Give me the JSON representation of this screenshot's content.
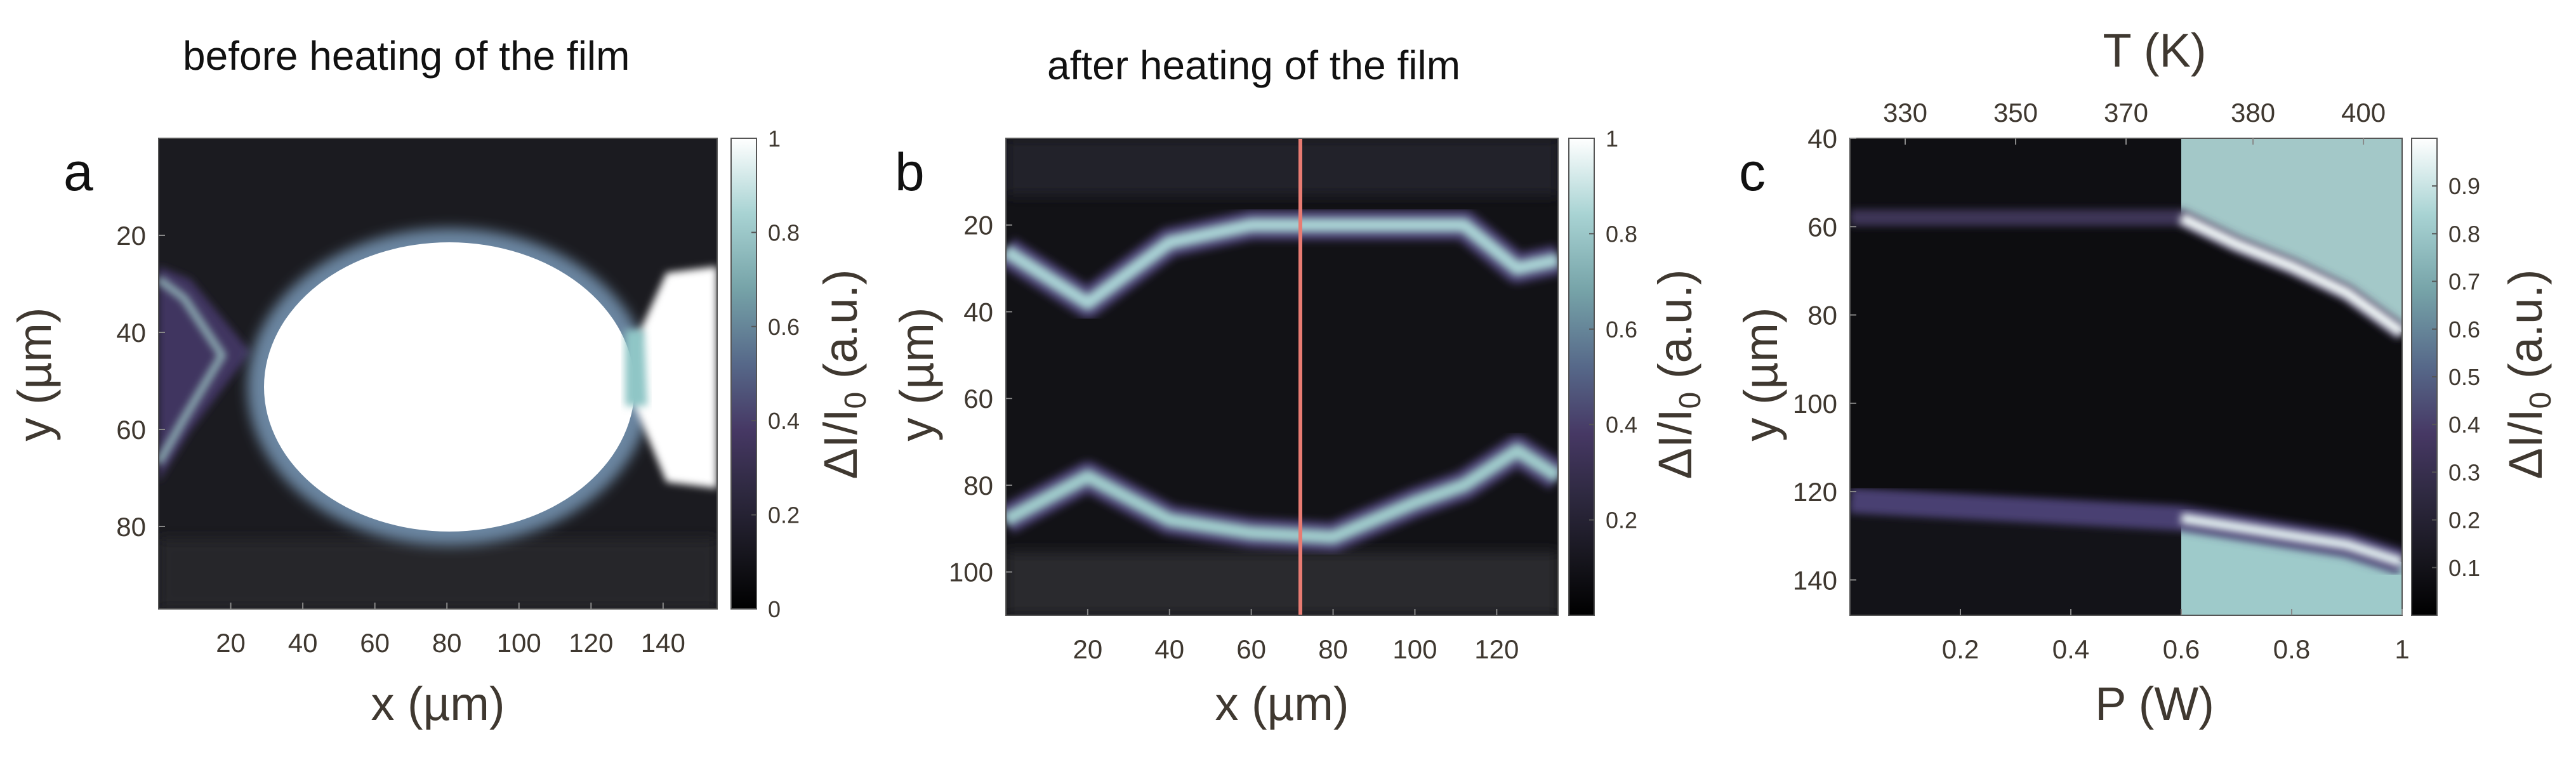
{
  "chart_data": [
    {
      "type": "heatmap",
      "panel": "a",
      "title": "before heating of the film",
      "xlabel": "x (µm)",
      "ylabel": "y (µm)",
      "colorbar_label": "ΔI/I0 (a.u.)",
      "xlim": [
        0,
        155
      ],
      "ylim": [
        97,
        0
      ],
      "x_ticks": [
        20,
        40,
        60,
        80,
        100,
        120,
        140
      ],
      "y_ticks": [
        20,
        40,
        60,
        80
      ],
      "clim": [
        0,
        1
      ],
      "colorbar_ticks": [
        0,
        0.2,
        0.4,
        0.6,
        0.8,
        1
      ],
      "regions": [
        {
          "shape": "ellipse",
          "cx": 78,
          "cy": 51,
          "rx": 38,
          "ry": 28,
          "value": 1.0
        },
        {
          "shape": "left-wedge",
          "x": 5,
          "y": 50,
          "value": 0.35
        },
        {
          "shape": "right-lobe",
          "x": 150,
          "y": 50,
          "value": 1.0
        }
      ]
    },
    {
      "type": "heatmap",
      "panel": "b",
      "title": "after heating of the film",
      "xlabel": "x (µm)",
      "ylabel": "y (µm)",
      "colorbar_label": "ΔI/I0 (a.u.)",
      "xlim": [
        0,
        135
      ],
      "ylim": [
        110,
        0
      ],
      "x_ticks": [
        20,
        40,
        60,
        80,
        100,
        120
      ],
      "y_ticks": [
        20,
        40,
        60,
        80,
        100
      ],
      "clim": [
        0,
        1
      ],
      "colorbar_ticks": [
        0.2,
        0.4,
        0.6,
        0.8,
        1
      ],
      "marker_line_x": 72,
      "marker_line_color": "#e87b72",
      "upper_band": {
        "x": [
          0,
          20,
          40,
          60,
          80,
          100,
          112,
          125,
          135
        ],
        "y": [
          26,
          38,
          24,
          20,
          20,
          20,
          20,
          30,
          28
        ],
        "value": 0.8
      },
      "lower_band": {
        "x": [
          0,
          20,
          40,
          60,
          80,
          100,
          112,
          125,
          135
        ],
        "y": [
          88,
          78,
          88,
          91,
          92,
          84,
          80,
          72,
          78
        ],
        "value": 0.75
      }
    },
    {
      "type": "heatmap",
      "panel": "c",
      "title": "T (K)",
      "xlabel": "P (W)",
      "ylabel": "y (µm)",
      "colorbar_label": "ΔI/I0 (a.u.)",
      "xlim": [
        0,
        1
      ],
      "ylim": [
        148,
        40
      ],
      "x_ticks": [
        0.2,
        0.4,
        0.6,
        0.8,
        1
      ],
      "x_tick_labels": [
        "0.2",
        "0.4",
        "0.6",
        "0.8",
        "1"
      ],
      "y_ticks": [
        40,
        60,
        80,
        100,
        120,
        140
      ],
      "top_ticks": [
        {
          "P": 0.1,
          "label": "330"
        },
        {
          "P": 0.3,
          "label": "350"
        },
        {
          "P": 0.5,
          "label": "370"
        },
        {
          "P": 0.73,
          "label": "380"
        },
        {
          "P": 0.93,
          "label": "400"
        }
      ],
      "clim": [
        0,
        1
      ],
      "colorbar_ticks": [
        0.1,
        0.2,
        0.3,
        0.4,
        0.5,
        0.6,
        0.7,
        0.8,
        0.9
      ],
      "upper_edge": {
        "P": [
          0,
          0.6,
          0.7,
          0.8,
          0.9,
          1
        ],
        "y": [
          58,
          58,
          64,
          69,
          75,
          84
        ]
      },
      "lower_edge": {
        "P": [
          0,
          0.6,
          0.7,
          0.8,
          0.9,
          1
        ],
        "y": [
          122,
          126,
          128,
          130,
          132,
          136
        ]
      },
      "threshold_P": 0.6
    }
  ]
}
